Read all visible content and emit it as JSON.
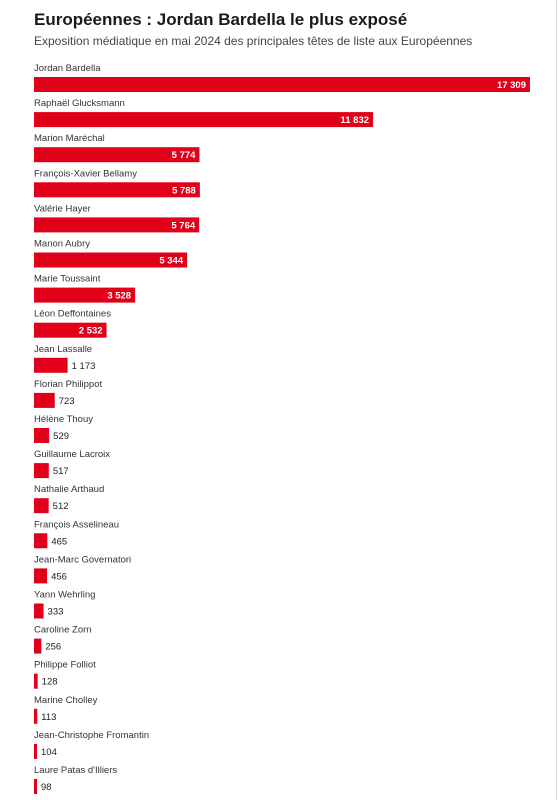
{
  "chart_data": {
    "type": "bar",
    "orientation": "horizontal",
    "title": "Européennes : Jordan Bardella le plus exposé",
    "subtitle": "Exposition médiatique en mai 2024 des principales têtes de liste aux Européennes",
    "categories": [
      "Jordan Bardella",
      "Raphaël Glucksmann",
      "Marion Maréchal",
      "François-Xavier Bellamy",
      "Valérie Hayer",
      "Manon Aubry",
      "Marie Toussaint",
      "Léon Deffontaines",
      "Jean Lassalle",
      "Florian Philippot",
      "Hélène Thouy",
      "Guillaume Lacroix",
      "Nathalie Arthaud",
      "François Asselineau",
      "Jean-Marc Governatori",
      "Yann Wehrling",
      "Caroline Zorn",
      "Philippe Folliot",
      "Marine Cholley",
      "Jean-Christophe Fromantin",
      "Laure Patas d'Illiers"
    ],
    "values": [
      17309,
      11832,
      5774,
      5788,
      5764,
      5344,
      3528,
      2532,
      1173,
      723,
      529,
      517,
      512,
      465,
      456,
      333,
      256,
      128,
      113,
      104,
      98
    ],
    "value_labels": [
      "17 309",
      "11 832",
      "5 774",
      "5 788",
      "5 764",
      "5 344",
      "3 528",
      "2 532",
      "1 173",
      "723",
      "529",
      "517",
      "512",
      "465",
      "456",
      "333",
      "256",
      "128",
      "113",
      "104",
      "98"
    ],
    "bar_color": "#e1001a",
    "xlim": [
      0,
      17309
    ],
    "grid": false,
    "legend": "none"
  }
}
